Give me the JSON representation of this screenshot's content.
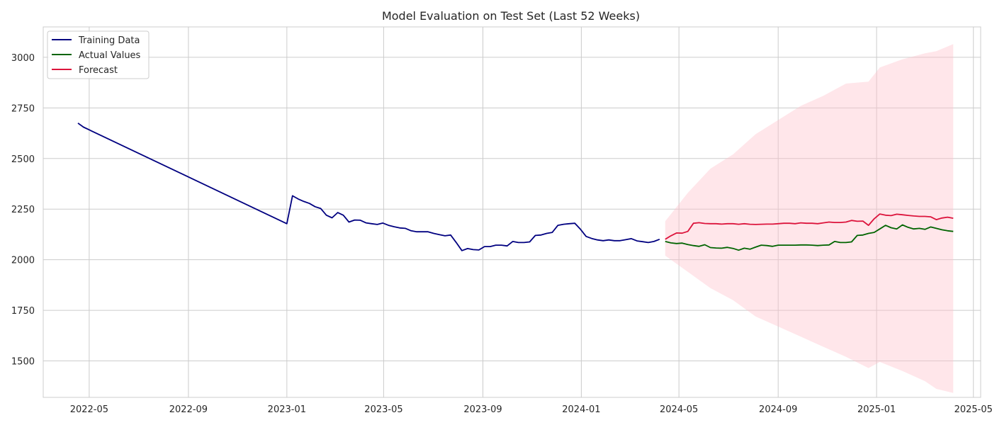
{
  "chart_data": {
    "type": "line",
    "title": "Model Evaluation on Test Set (Last 52 Weeks)",
    "xlabel": "",
    "ylabel": "",
    "grid": true,
    "legend_position": "top-left",
    "x_ticks": [
      "2022-05",
      "2022-09",
      "2023-01",
      "2023-05",
      "2023-09",
      "2024-01",
      "2024-05",
      "2024-09",
      "2025-01",
      "2025-05"
    ],
    "y_ticks": [
      1500,
      1750,
      2000,
      2250,
      2500,
      2750,
      3000
    ],
    "xlim": [
      "2022-03-05",
      "2025-05-10"
    ],
    "ylim": [
      1320,
      3150
    ],
    "series": [
      {
        "name": "Training Data",
        "color": "#000080",
        "points": [
          [
            "2022-04-17",
            2675
          ],
          [
            "2022-04-24",
            2655
          ],
          [
            "2023-01-01",
            2178
          ],
          [
            "2023-01-08",
            2316
          ],
          [
            "2023-01-15",
            2300
          ],
          [
            "2023-01-22",
            2288
          ],
          [
            "2023-01-29",
            2278
          ],
          [
            "2023-02-05",
            2262
          ],
          [
            "2023-02-12",
            2253
          ],
          [
            "2023-02-19",
            2220
          ],
          [
            "2023-02-26",
            2207
          ],
          [
            "2023-03-05",
            2233
          ],
          [
            "2023-03-12",
            2220
          ],
          [
            "2023-03-19",
            2186
          ],
          [
            "2023-03-26",
            2196
          ],
          [
            "2023-04-02",
            2195
          ],
          [
            "2023-04-09",
            2182
          ],
          [
            "2023-04-16",
            2178
          ],
          [
            "2023-04-23",
            2174
          ],
          [
            "2023-04-30",
            2181
          ],
          [
            "2023-05-07",
            2170
          ],
          [
            "2023-05-14",
            2163
          ],
          [
            "2023-05-21",
            2157
          ],
          [
            "2023-05-28",
            2155
          ],
          [
            "2023-06-04",
            2143
          ],
          [
            "2023-06-11",
            2138
          ],
          [
            "2023-06-18",
            2138
          ],
          [
            "2023-06-25",
            2138
          ],
          [
            "2023-07-02",
            2130
          ],
          [
            "2023-07-09",
            2124
          ],
          [
            "2023-07-16",
            2118
          ],
          [
            "2023-07-23",
            2122
          ],
          [
            "2023-07-30",
            2085
          ],
          [
            "2023-08-06",
            2045
          ],
          [
            "2023-08-13",
            2055
          ],
          [
            "2023-08-20",
            2050
          ],
          [
            "2023-08-27",
            2048
          ],
          [
            "2023-09-03",
            2065
          ],
          [
            "2023-09-10",
            2065
          ],
          [
            "2023-09-17",
            2072
          ],
          [
            "2023-09-24",
            2072
          ],
          [
            "2023-10-01",
            2068
          ],
          [
            "2023-10-08",
            2090
          ],
          [
            "2023-10-15",
            2085
          ],
          [
            "2023-10-22",
            2085
          ],
          [
            "2023-10-29",
            2088
          ],
          [
            "2023-11-05",
            2120
          ],
          [
            "2023-11-12",
            2122
          ],
          [
            "2023-11-19",
            2130
          ],
          [
            "2023-11-26",
            2135
          ],
          [
            "2023-12-03",
            2170
          ],
          [
            "2023-12-10",
            2175
          ],
          [
            "2023-12-17",
            2178
          ],
          [
            "2023-12-24",
            2180
          ],
          [
            "2023-12-31",
            2150
          ],
          [
            "2024-01-07",
            2115
          ],
          [
            "2024-01-14",
            2105
          ],
          [
            "2024-01-21",
            2098
          ],
          [
            "2024-01-28",
            2094
          ],
          [
            "2024-02-04",
            2098
          ],
          [
            "2024-02-11",
            2094
          ],
          [
            "2024-02-18",
            2094
          ],
          [
            "2024-02-25",
            2099
          ],
          [
            "2024-03-03",
            2104
          ],
          [
            "2024-03-10",
            2093
          ],
          [
            "2024-03-17",
            2089
          ],
          [
            "2024-03-24",
            2085
          ],
          [
            "2024-03-31",
            2090
          ],
          [
            "2024-04-07",
            2101
          ]
        ]
      },
      {
        "name": "Actual Values",
        "color": "#006400",
        "points": [
          [
            "2024-04-14",
            2090
          ],
          [
            "2024-04-21",
            2083
          ],
          [
            "2024-04-28",
            2080
          ],
          [
            "2024-05-05",
            2082
          ],
          [
            "2024-05-12",
            2075
          ],
          [
            "2024-05-19",
            2070
          ],
          [
            "2024-05-26",
            2066
          ],
          [
            "2024-06-02",
            2074
          ],
          [
            "2024-06-09",
            2060
          ],
          [
            "2024-06-16",
            2058
          ],
          [
            "2024-06-23",
            2057
          ],
          [
            "2024-06-30",
            2061
          ],
          [
            "2024-07-07",
            2056
          ],
          [
            "2024-07-14",
            2047
          ],
          [
            "2024-07-21",
            2057
          ],
          [
            "2024-07-28",
            2052
          ],
          [
            "2024-08-04",
            2062
          ],
          [
            "2024-08-11",
            2072
          ],
          [
            "2024-08-18",
            2070
          ],
          [
            "2024-08-25",
            2066
          ],
          [
            "2024-09-01",
            2072
          ],
          [
            "2024-09-08",
            2072
          ],
          [
            "2024-09-15",
            2072
          ],
          [
            "2024-09-22",
            2072
          ],
          [
            "2024-09-29",
            2073
          ],
          [
            "2024-10-06",
            2073
          ],
          [
            "2024-10-13",
            2072
          ],
          [
            "2024-10-20",
            2070
          ],
          [
            "2024-10-27",
            2072
          ],
          [
            "2024-11-03",
            2073
          ],
          [
            "2024-11-10",
            2090
          ],
          [
            "2024-11-17",
            2085
          ],
          [
            "2024-11-24",
            2085
          ],
          [
            "2024-12-01",
            2088
          ],
          [
            "2024-12-08",
            2120
          ],
          [
            "2024-12-15",
            2122
          ],
          [
            "2024-12-22",
            2130
          ],
          [
            "2024-12-29",
            2135
          ],
          [
            "2025-01-05",
            2152
          ],
          [
            "2025-01-12",
            2170
          ],
          [
            "2025-01-19",
            2158
          ],
          [
            "2025-01-26",
            2152
          ],
          [
            "2025-02-02",
            2172
          ],
          [
            "2025-02-09",
            2160
          ],
          [
            "2025-02-16",
            2152
          ],
          [
            "2025-02-23",
            2155
          ],
          [
            "2025-03-02",
            2150
          ],
          [
            "2025-03-09",
            2162
          ],
          [
            "2025-03-16",
            2155
          ],
          [
            "2025-03-23",
            2148
          ],
          [
            "2025-03-30",
            2143
          ],
          [
            "2025-04-06",
            2140
          ]
        ]
      },
      {
        "name": "Forecast",
        "color": "#dc143c",
        "points": [
          [
            "2024-04-14",
            2101
          ],
          [
            "2024-04-21",
            2118
          ],
          [
            "2024-04-28",
            2132
          ],
          [
            "2024-05-05",
            2131
          ],
          [
            "2024-05-12",
            2140
          ],
          [
            "2024-05-19",
            2180
          ],
          [
            "2024-05-26",
            2183
          ],
          [
            "2024-06-02",
            2179
          ],
          [
            "2024-06-09",
            2178
          ],
          [
            "2024-06-16",
            2178
          ],
          [
            "2024-06-23",
            2176
          ],
          [
            "2024-06-30",
            2178
          ],
          [
            "2024-07-07",
            2178
          ],
          [
            "2024-07-14",
            2175
          ],
          [
            "2024-07-21",
            2178
          ],
          [
            "2024-07-28",
            2175
          ],
          [
            "2024-08-04",
            2174
          ],
          [
            "2024-08-11",
            2175
          ],
          [
            "2024-08-18",
            2176
          ],
          [
            "2024-08-25",
            2176
          ],
          [
            "2024-09-01",
            2178
          ],
          [
            "2024-09-08",
            2180
          ],
          [
            "2024-09-15",
            2180
          ],
          [
            "2024-09-22",
            2178
          ],
          [
            "2024-09-29",
            2182
          ],
          [
            "2024-10-06",
            2180
          ],
          [
            "2024-10-13",
            2180
          ],
          [
            "2024-10-20",
            2178
          ],
          [
            "2024-10-27",
            2182
          ],
          [
            "2024-11-03",
            2186
          ],
          [
            "2024-11-10",
            2184
          ],
          [
            "2024-11-17",
            2184
          ],
          [
            "2024-11-24",
            2186
          ],
          [
            "2024-12-01",
            2194
          ],
          [
            "2024-12-08",
            2190
          ],
          [
            "2024-12-15",
            2191
          ],
          [
            "2024-12-22",
            2170
          ],
          [
            "2024-12-29",
            2202
          ],
          [
            "2025-01-05",
            2226
          ],
          [
            "2025-01-12",
            2220
          ],
          [
            "2025-01-19",
            2218
          ],
          [
            "2025-01-26",
            2225
          ],
          [
            "2025-02-02",
            2222
          ],
          [
            "2025-02-09",
            2219
          ],
          [
            "2025-02-16",
            2216
          ],
          [
            "2025-02-23",
            2214
          ],
          [
            "2025-03-02",
            2214
          ],
          [
            "2025-03-09",
            2212
          ],
          [
            "2025-03-16",
            2198
          ],
          [
            "2025-03-23",
            2206
          ],
          [
            "2025-03-30",
            2210
          ],
          [
            "2025-04-06",
            2205
          ]
        ]
      }
    ],
    "forecast_interval": {
      "color": "#ffc0cb",
      "opacity": 0.4,
      "dates": [
        "2024-04-14",
        "2024-05-12",
        "2024-06-09",
        "2024-07-07",
        "2024-08-04",
        "2024-09-01",
        "2024-09-29",
        "2024-10-27",
        "2024-11-24",
        "2024-12-22",
        "2025-01-05",
        "2025-02-02",
        "2025-03-02",
        "2025-03-16",
        "2025-04-06"
      ],
      "upper": [
        2190,
        2330,
        2450,
        2520,
        2620,
        2690,
        2760,
        2810,
        2870,
        2880,
        2950,
        2990,
        3020,
        3030,
        3065
      ],
      "lower": [
        2020,
        1940,
        1860,
        1800,
        1720,
        1670,
        1620,
        1570,
        1520,
        1465,
        1495,
        1450,
        1400,
        1362,
        1342
      ]
    }
  }
}
